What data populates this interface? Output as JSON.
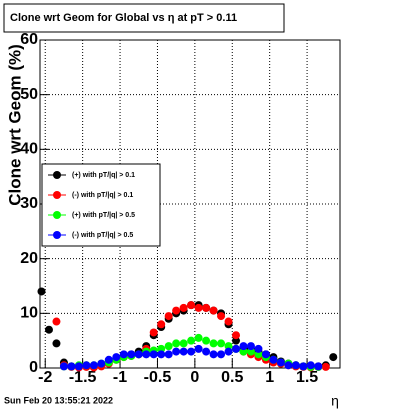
{
  "chart_data": {
    "type": "scatter",
    "title": "Clone wrt Geom for Global vs  η at pT > 0.11",
    "y_label": "Clone wrt Geom (%)",
    "x_label": "η",
    "date": "Sun Feb 20 13:55:21 2022",
    "xlim": [
      -2.07,
      1.94
    ],
    "ylim": [
      0,
      60
    ],
    "xticks": [
      -2,
      -1.5,
      -1,
      -0.5,
      0,
      0.5,
      1,
      1.5
    ],
    "yticks": [
      0,
      10,
      20,
      30,
      40,
      50,
      60
    ],
    "grid": true,
    "legend": "left",
    "x": [
      -2.05,
      -1.95,
      -1.85,
      -1.75,
      -1.65,
      -1.55,
      -1.45,
      -1.35,
      -1.25,
      -1.15,
      -1.05,
      -0.95,
      -0.85,
      -0.75,
      -0.65,
      -0.55,
      -0.45,
      -0.35,
      -0.25,
      -0.15,
      -0.05,
      0.05,
      0.15,
      0.25,
      0.35,
      0.45,
      0.55,
      0.65,
      0.75,
      0.85,
      0.95,
      1.05,
      1.15,
      1.25,
      1.35,
      1.45,
      1.55,
      1.65,
      1.75,
      1.85
    ],
    "series": [
      {
        "name": "(+) with pT/|q| > 0.1",
        "color": "#000000",
        "values": [
          14,
          7,
          4.5,
          1,
          0.3,
          0.2,
          0.3,
          0.2,
          0.5,
          1.2,
          1.8,
          2.2,
          2.5,
          3,
          4,
          6,
          7.5,
          9,
          10,
          10.5,
          11.5,
          11.5,
          11,
          10.5,
          10,
          8,
          5,
          3.5,
          3.5,
          3,
          2.5,
          2,
          1.2,
          0.8,
          0.5,
          0.3,
          0.2,
          0.3,
          0.5,
          2
        ]
      },
      {
        "name": "(-) with pT/|q| > 0.1",
        "color": "#ff0000",
        "values": [
          null,
          null,
          8.5,
          0.5,
          0.2,
          0.1,
          0.2,
          0.1,
          0.3,
          0.8,
          1.5,
          2,
          2.2,
          2.5,
          3.5,
          6.5,
          8,
          9.5,
          10.5,
          11,
          11.5,
          11,
          11,
          10.5,
          9.5,
          8.5,
          6,
          3,
          2.5,
          2,
          1.5,
          1,
          0.8,
          0.5,
          0.3,
          0.2,
          0.1,
          0.2,
          0.2,
          null
        ]
      },
      {
        "name": "(+) with pT/|q| > 0.5",
        "color": "#00ff00",
        "values": [
          null,
          null,
          null,
          0.3,
          0.3,
          0.5,
          0.5,
          0.5,
          0.8,
          1,
          1.5,
          2,
          2.2,
          2.5,
          3,
          3.2,
          3.5,
          4,
          4.5,
          4.5,
          5,
          5.5,
          5,
          4.5,
          4.5,
          4,
          3.5,
          3,
          3,
          2.5,
          2,
          1.5,
          1,
          0.8,
          0.5,
          0.3,
          0.2,
          0.2,
          null,
          null
        ]
      },
      {
        "name": "(-) with pT/|q| > 0.5",
        "color": "#0000ff",
        "values": [
          null,
          null,
          null,
          0.3,
          0.3,
          0.3,
          0.5,
          0.5,
          0.8,
          1.5,
          2,
          2.5,
          2.5,
          2.5,
          2.5,
          2.5,
          2.5,
          2.5,
          3,
          3,
          3,
          3.5,
          3,
          2.5,
          2.5,
          3,
          3.5,
          4,
          4,
          3.5,
          2.5,
          1.5,
          1,
          0.5,
          0.5,
          0.3,
          0.5,
          0.3,
          null,
          null
        ]
      }
    ]
  }
}
